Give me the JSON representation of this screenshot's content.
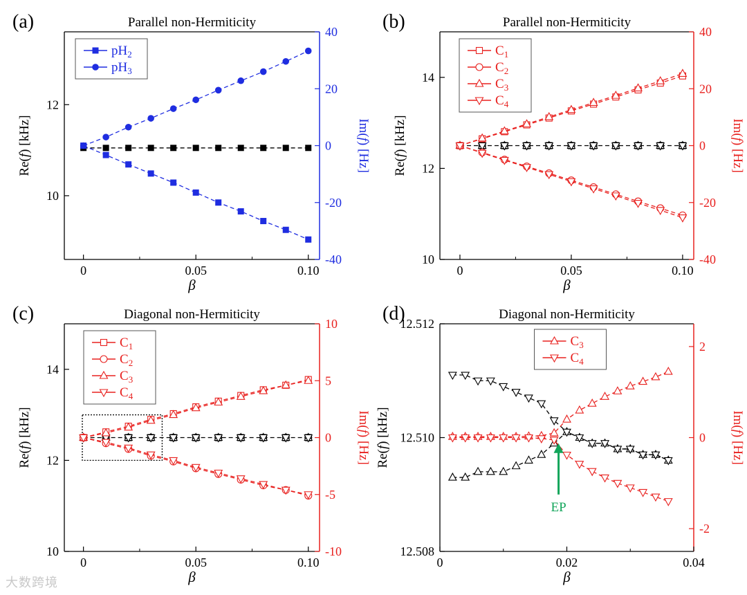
{
  "colors": {
    "black": "#000000",
    "blue": "#1f2de0",
    "red": "#e8201e",
    "green": "#12a55a"
  },
  "watermark": "大数跨境",
  "chart_data": [
    {
      "id": "a",
      "panel_label": "(a)",
      "type": "line",
      "title": "Parallel non-Hermiticity",
      "xlabel": "β",
      "ylabel_left": {
        "pre": "Re(",
        "it": "f",
        "post": ") [kHz]"
      },
      "ylabel_right": {
        "pre": "Im(",
        "it": "f",
        "post": ") [Hz]"
      },
      "right_color": "blue",
      "xlim": [
        -0.0085,
        0.105
      ],
      "ylim_left": [
        8.6,
        13.6
      ],
      "ylim_right": [
        -40,
        40
      ],
      "xticks": [
        0,
        0.05,
        0.1
      ],
      "xtick_labels": [
        "0",
        "0.05",
        "0.10"
      ],
      "yticks_left": [
        10,
        12
      ],
      "ytick_labels_left": [
        "10",
        "12"
      ],
      "yticks_right": [
        -40,
        -20,
        0,
        20,
        40
      ],
      "ytick_labels_right": [
        "-40",
        "-20",
        "0",
        "20",
        "40"
      ],
      "x": [
        0,
        0.01,
        0.02,
        0.03,
        0.04,
        0.05,
        0.06,
        0.07,
        0.08,
        0.09,
        0.1
      ],
      "series": [
        {
          "name": "pH2 real",
          "axis": "left",
          "color": "black",
          "marker": "square-filled",
          "values": [
            11.05,
            11.05,
            11.05,
            11.05,
            11.05,
            11.05,
            11.05,
            11.05,
            11.05,
            11.05,
            11.05
          ]
        },
        {
          "name": "pH2 imag",
          "axis": "right",
          "color": "blue",
          "marker": "square-filled",
          "values": [
            0,
            -3.3,
            -6.6,
            -9.8,
            -13.0,
            -16.5,
            -20.0,
            -23.1,
            -26.5,
            -29.6,
            -33.0
          ]
        },
        {
          "name": "pH3 imag",
          "axis": "right",
          "color": "blue",
          "marker": "circle-filled",
          "values": [
            0,
            3.0,
            6.5,
            9.6,
            13.0,
            16.1,
            19.5,
            22.8,
            26.0,
            29.6,
            33.3
          ]
        }
      ],
      "legend": {
        "position": "top-left",
        "color": "blue",
        "entries": [
          {
            "base": "pH",
            "sub": "2",
            "marker": "square-filled"
          },
          {
            "base": "pH",
            "sub": "3",
            "marker": "circle-filled"
          }
        ]
      }
    },
    {
      "id": "b",
      "panel_label": "(b)",
      "type": "line",
      "title": "Parallel non-Hermiticity",
      "xlabel": "β",
      "ylabel_left": {
        "pre": "Re(",
        "it": "f",
        "post": ") [kHz]"
      },
      "ylabel_right": {
        "pre": "Im(",
        "it": "f",
        "post": ") [Hz]"
      },
      "right_color": "red",
      "xlim": [
        -0.009,
        0.105
      ],
      "ylim_left": [
        10,
        15
      ],
      "ylim_right": [
        -40,
        40
      ],
      "xticks": [
        0,
        0.05,
        0.1
      ],
      "xtick_labels": [
        "0",
        "0.05",
        "0.10"
      ],
      "yticks_left": [
        10,
        12,
        14
      ],
      "ytick_labels_left": [
        "10",
        "12",
        "14"
      ],
      "yticks_right": [
        -40,
        -20,
        0,
        20,
        40
      ],
      "ytick_labels_right": [
        "-40",
        "-20",
        "0",
        "20",
        "40"
      ],
      "x": [
        0,
        0.01,
        0.02,
        0.03,
        0.04,
        0.05,
        0.06,
        0.07,
        0.08,
        0.09,
        0.1
      ],
      "series": [
        {
          "name": "C real",
          "axis": "left",
          "color": "black",
          "marker": "all-open",
          "values": [
            12.5,
            12.5,
            12.5,
            12.5,
            12.5,
            12.5,
            12.5,
            12.5,
            12.5,
            12.5,
            12.5
          ]
        },
        {
          "name": "C1 imag",
          "axis": "right",
          "color": "red",
          "marker": "square-open",
          "values": [
            0,
            2.4,
            4.9,
            7.3,
            9.7,
            12.2,
            14.6,
            17.1,
            19.6,
            22.0,
            24.5
          ]
        },
        {
          "name": "C3 imag",
          "axis": "right",
          "color": "red",
          "marker": "triangle-up-open",
          "values": [
            0,
            2.6,
            5.1,
            7.6,
            10.1,
            12.6,
            15.1,
            17.6,
            20.2,
            22.7,
            25.3
          ]
        },
        {
          "name": "C2 imag",
          "axis": "right",
          "color": "red",
          "marker": "circle-open",
          "values": [
            0,
            -2.4,
            -4.9,
            -7.3,
            -9.7,
            -12.2,
            -14.6,
            -17.1,
            -19.6,
            -22.0,
            -24.5
          ]
        },
        {
          "name": "C4 imag",
          "axis": "right",
          "color": "red",
          "marker": "triangle-down-open",
          "values": [
            0,
            -2.6,
            -5.1,
            -7.6,
            -10.1,
            -12.6,
            -15.1,
            -17.6,
            -20.2,
            -22.7,
            -25.3
          ]
        }
      ],
      "legend": {
        "position": "top-left",
        "color": "red",
        "entries": [
          {
            "base": "C",
            "sub": "1",
            "marker": "square-open"
          },
          {
            "base": "C",
            "sub": "2",
            "marker": "circle-open"
          },
          {
            "base": "C",
            "sub": "3",
            "marker": "triangle-up-open"
          },
          {
            "base": "C",
            "sub": "4",
            "marker": "triangle-down-open"
          }
        ]
      }
    },
    {
      "id": "c",
      "panel_label": "(c)",
      "type": "line",
      "title": "Diagonal non-Hermiticity",
      "xlabel": "β",
      "ylabel_left": {
        "pre": "Re(",
        "it": "f",
        "post": ") [kHz]"
      },
      "ylabel_right": {
        "pre": "Im(",
        "it": "f",
        "post": ") [Hz]"
      },
      "right_color": "red",
      "xlim": [
        -0.0085,
        0.105
      ],
      "ylim_left": [
        10,
        15
      ],
      "ylim_right": [
        -10,
        10
      ],
      "xticks": [
        0,
        0.05,
        0.1
      ],
      "xtick_labels": [
        "0",
        "0.05",
        "0.10"
      ],
      "yticks_left": [
        10,
        12,
        14
      ],
      "ytick_labels_left": [
        "10",
        "12",
        "14"
      ],
      "yticks_right": [
        -10,
        -5,
        0,
        5,
        10
      ],
      "ytick_labels_right": [
        "-10",
        "-5",
        "0",
        "5",
        "10"
      ],
      "x": [
        0,
        0.01,
        0.02,
        0.03,
        0.04,
        0.05,
        0.06,
        0.07,
        0.08,
        0.09,
        0.1
      ],
      "series": [
        {
          "name": "C real",
          "axis": "left",
          "color": "black",
          "marker": "all-open",
          "values": [
            12.5,
            12.5,
            12.5,
            12.5,
            12.5,
            12.5,
            12.5,
            12.5,
            12.5,
            12.5,
            12.5
          ]
        },
        {
          "name": "C1 imag",
          "axis": "right",
          "color": "red",
          "marker": "square-open",
          "values": [
            0,
            0.5,
            1.0,
            1.6,
            2.1,
            2.7,
            3.2,
            3.7,
            4.2,
            4.6,
            5.1
          ]
        },
        {
          "name": "C3 imag",
          "axis": "right",
          "color": "red",
          "marker": "triangle-up-open",
          "values": [
            0,
            0.4,
            0.9,
            1.5,
            2.0,
            2.6,
            3.1,
            3.6,
            4.1,
            4.6,
            5.0
          ]
        },
        {
          "name": "C2 imag",
          "axis": "right",
          "color": "red",
          "marker": "circle-open",
          "values": [
            0,
            -0.5,
            -1.0,
            -1.6,
            -2.1,
            -2.7,
            -3.2,
            -3.7,
            -4.2,
            -4.6,
            -5.1
          ]
        },
        {
          "name": "C4 imag",
          "axis": "right",
          "color": "red",
          "marker": "triangle-down-open",
          "values": [
            0,
            -0.4,
            -0.9,
            -1.5,
            -2.0,
            -2.6,
            -3.1,
            -3.6,
            -4.1,
            -4.6,
            -5.0
          ]
        }
      ],
      "inset_box": {
        "x": [
          -0.0005,
          0.035
        ],
        "y": [
          12.0,
          13.0
        ]
      },
      "legend": {
        "position": "top-left",
        "color": "red",
        "entries": [
          {
            "base": "C",
            "sub": "1",
            "marker": "square-open"
          },
          {
            "base": "C",
            "sub": "2",
            "marker": "circle-open"
          },
          {
            "base": "C",
            "sub": "3",
            "marker": "triangle-up-open"
          },
          {
            "base": "C",
            "sub": "4",
            "marker": "triangle-down-open"
          }
        ]
      }
    },
    {
      "id": "d",
      "panel_label": "(d)",
      "type": "line",
      "title": "Diagonal non-Hermiticity",
      "xlabel": "β",
      "ylabel_left": {
        "pre": "Re(",
        "it": "f",
        "post": ") [kHz]"
      },
      "ylabel_right": {
        "pre": "Im(",
        "it": "f",
        "post": ") [Hz]"
      },
      "right_color": "red",
      "xlim": [
        0,
        0.04
      ],
      "ylim_left": [
        12.508,
        12.512
      ],
      "ylim_right": [
        -2.5,
        2.5
      ],
      "xticks": [
        0,
        0.02,
        0.04
      ],
      "xtick_labels": [
        "0",
        "0.02",
        "0.04"
      ],
      "yticks_left": [
        12.508,
        12.51,
        12.512
      ],
      "ytick_labels_left": [
        "12.508",
        "12.510",
        "12.512"
      ],
      "yticks_right": [
        -2,
        0,
        2
      ],
      "ytick_labels_right": [
        "-2",
        "0",
        "2"
      ],
      "x": [
        0.002,
        0.004,
        0.006,
        0.008,
        0.01,
        0.012,
        0.014,
        0.016,
        0.018,
        0.02,
        0.022,
        0.024,
        0.026,
        0.028,
        0.03,
        0.032,
        0.034,
        0.036
      ],
      "series": [
        {
          "name": "C3 real",
          "axis": "left",
          "color": "black",
          "marker": "triangle-up-open",
          "values": [
            12.5093,
            12.5093,
            12.5094,
            12.5094,
            12.5094,
            12.5095,
            12.5096,
            12.5097,
            12.5099,
            12.5101,
            12.51,
            12.5099,
            12.5099,
            12.5098,
            12.5098,
            12.5097,
            12.5097,
            12.5096
          ]
        },
        {
          "name": "C4 real",
          "axis": "left",
          "color": "black",
          "marker": "triangle-down-open",
          "values": [
            12.5111,
            12.5111,
            12.511,
            12.511,
            12.5109,
            12.5108,
            12.5107,
            12.5106,
            12.5103,
            12.5101,
            12.51,
            12.5099,
            12.5099,
            12.5098,
            12.5098,
            12.5097,
            12.5097,
            12.5096
          ]
        },
        {
          "name": "C3 imag",
          "axis": "right",
          "color": "red",
          "marker": "triangle-up-open",
          "values": [
            0.02,
            0.02,
            0.02,
            0.02,
            0.02,
            0.02,
            0.03,
            0.04,
            0.1,
            0.4,
            0.6,
            0.75,
            0.9,
            1.02,
            1.13,
            1.23,
            1.33,
            1.45
          ]
        },
        {
          "name": "C4 imag",
          "axis": "right",
          "color": "red",
          "marker": "triangle-down-open",
          "values": [
            0.0,
            0.0,
            0.0,
            0.0,
            0.0,
            0.0,
            0.0,
            -0.02,
            -0.05,
            -0.38,
            -0.58,
            -0.74,
            -0.88,
            -1.0,
            -1.1,
            -1.2,
            -1.3,
            -1.4
          ]
        }
      ],
      "annotation": {
        "text": "EP",
        "color": "green",
        "x": 0.0187,
        "arrow_tip_y": 12.5099,
        "arrow_tail_y": 12.509
      },
      "legend": {
        "position": "top-center",
        "color": "red",
        "entries": [
          {
            "base": "C",
            "sub": "3",
            "marker": "triangle-up-open"
          },
          {
            "base": "C",
            "sub": "4",
            "marker": "triangle-down-open"
          }
        ]
      }
    }
  ]
}
